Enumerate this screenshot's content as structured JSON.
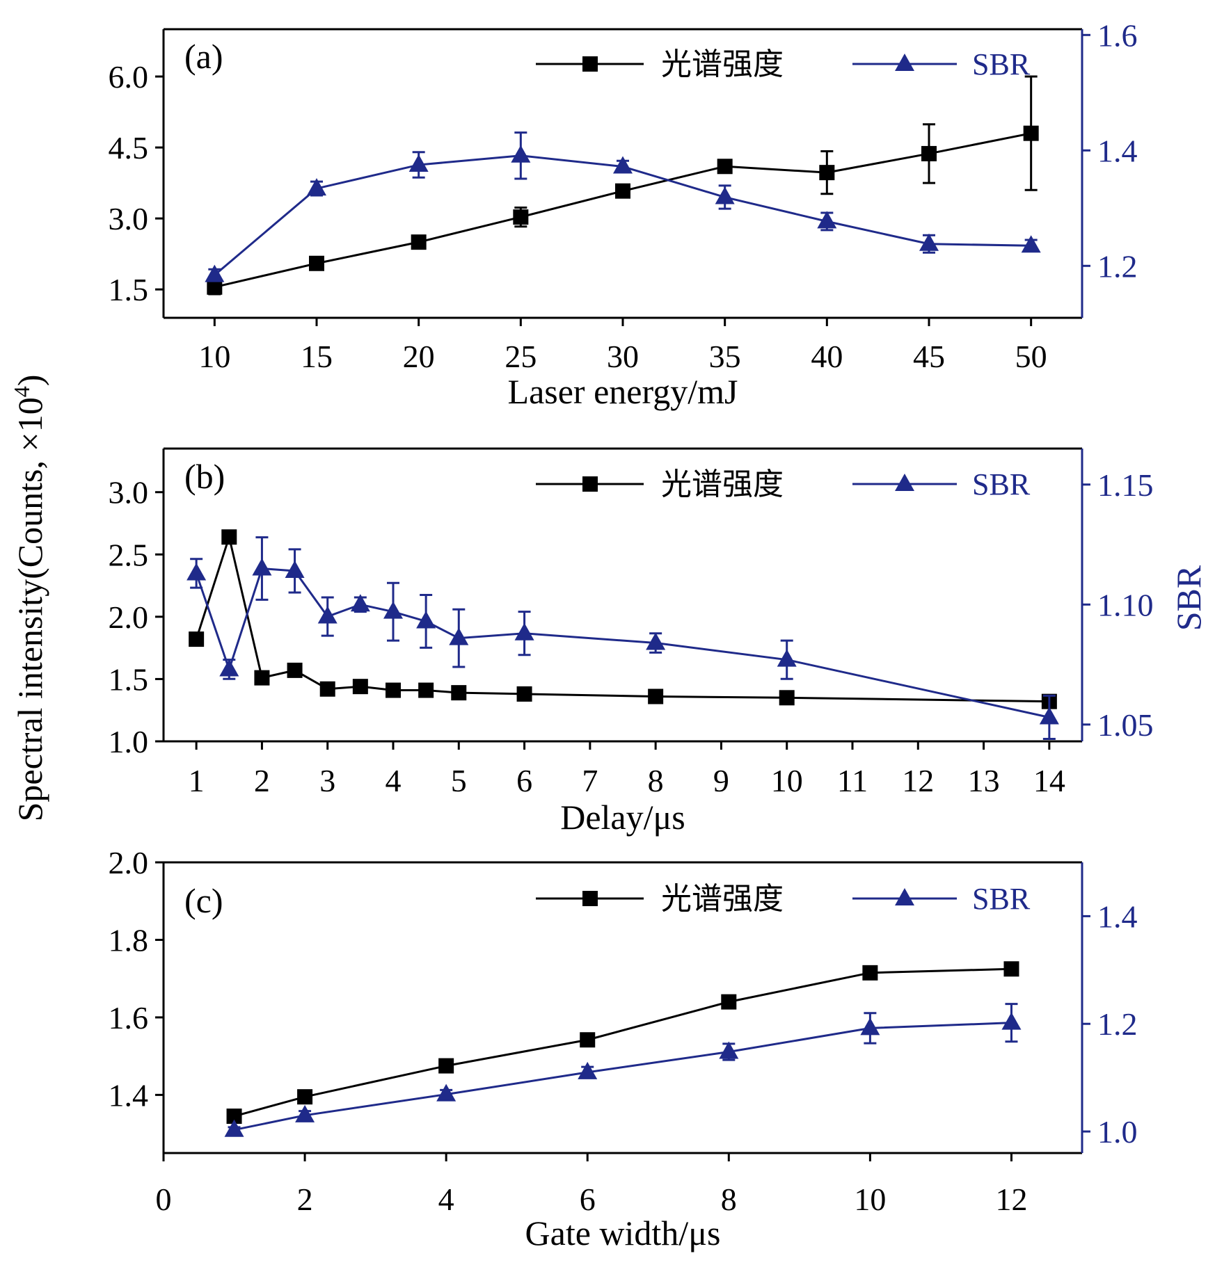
{
  "colors": {
    "intensity": "#000000",
    "sbr": "#1f2a8a",
    "frame": "#000000"
  },
  "labels": {
    "y_left": "Spectral intensity(Counts, ×10",
    "y_left_sup": "4",
    "y_left_close": ")",
    "y_right": "SBR"
  },
  "chart_data": [
    {
      "type": "line",
      "panel_label": "(a)",
      "xlabel": "Laser energy/mJ",
      "ylabel": "Spectral intensity(Counts, ×10^4)",
      "ylabel_right": "SBR",
      "xlim": [
        7.5,
        52.5
      ],
      "x_ticks": [
        10,
        15,
        20,
        25,
        30,
        35,
        40,
        45,
        50
      ],
      "ylim": [
        0.9,
        7.0
      ],
      "y_ticks": [
        1.5,
        3.0,
        4.5,
        6.0
      ],
      "y_tick_labels": [
        "1.5",
        "3.0",
        "4.5",
        "6.0"
      ],
      "ylim_right": [
        1.11,
        1.61
      ],
      "y_ticks_right": [
        1.2,
        1.4,
        1.6
      ],
      "y_tick_labels_right": [
        "1.2",
        "1.4",
        "1.6"
      ],
      "legend": [
        "光谱强度",
        "SBR"
      ],
      "series": [
        {
          "name": "光谱强度",
          "axis": "left",
          "marker": "square",
          "x": [
            10,
            15,
            20,
            25,
            30,
            35,
            40,
            45,
            50
          ],
          "values": [
            1.55,
            2.05,
            2.5,
            3.03,
            3.58,
            4.1,
            3.97,
            4.37,
            4.8
          ],
          "errors": [
            0.15,
            0.1,
            0.12,
            0.2,
            0.12,
            0.1,
            0.45,
            0.62,
            1.2
          ]
        },
        {
          "name": "SBR",
          "axis": "right",
          "marker": "triangle",
          "x": [
            10,
            15,
            20,
            25,
            30,
            35,
            40,
            45,
            50
          ],
          "values": [
            1.184,
            1.334,
            1.375,
            1.391,
            1.372,
            1.319,
            1.277,
            1.238,
            1.235
          ],
          "errors": [
            0.01,
            0.012,
            0.022,
            0.04,
            0.01,
            0.02,
            0.015,
            0.015,
            0.01
          ]
        }
      ]
    },
    {
      "type": "line",
      "panel_label": "(b)",
      "xlabel": "Delay/μs",
      "ylabel": "Spectral intensity(Counts, ×10^4)",
      "ylabel_right": "SBR",
      "xlim": [
        0.5,
        14.5
      ],
      "x_ticks": [
        1,
        2,
        3,
        4,
        5,
        6,
        7,
        8,
        9,
        10,
        11,
        12,
        13,
        14
      ],
      "ylim": [
        1.0,
        3.35
      ],
      "y_ticks": [
        1.0,
        1.5,
        2.0,
        2.5,
        3.0
      ],
      "y_tick_labels": [
        "1.0",
        "1.5",
        "2.0",
        "2.5",
        "3.0"
      ],
      "ylim_right": [
        1.043,
        1.165
      ],
      "y_ticks_right": [
        1.05,
        1.1,
        1.15
      ],
      "y_tick_labels_right": [
        "1.05",
        "1.10",
        "1.15"
      ],
      "legend": [
        "光谱强度",
        "SBR"
      ],
      "series": [
        {
          "name": "光谱强度",
          "axis": "left",
          "marker": "square",
          "x": [
            1,
            1.5,
            2,
            2.5,
            3,
            3.5,
            4,
            4.5,
            5,
            6,
            8,
            10,
            14
          ],
          "values": [
            1.82,
            2.64,
            1.51,
            1.57,
            1.42,
            1.44,
            1.41,
            1.41,
            1.39,
            1.38,
            1.36,
            1.35,
            1.32
          ],
          "errors": [
            0,
            0.03,
            0.03,
            0.03,
            0,
            0.03,
            0.03,
            0.03,
            0.03,
            0.03,
            0.03,
            0.03,
            0.05
          ]
        },
        {
          "name": "SBR",
          "axis": "right",
          "marker": "triangle",
          "x": [
            1,
            1.5,
            2,
            2.5,
            3,
            3.5,
            4,
            4.5,
            5,
            6,
            8,
            10,
            14
          ],
          "values": [
            1.113,
            1.073,
            1.115,
            1.114,
            1.095,
            1.1,
            1.097,
            1.093,
            1.086,
            1.088,
            1.084,
            1.077,
            1.053
          ],
          "errors": [
            0.006,
            0.004,
            0.013,
            0.009,
            0.008,
            0.003,
            0.012,
            0.011,
            0.012,
            0.009,
            0.004,
            0.008,
            0.009
          ]
        }
      ]
    },
    {
      "type": "line",
      "panel_label": "(c)",
      "xlabel": "Gate width/μs",
      "ylabel": "Spectral intensity(Counts, ×10^4)",
      "ylabel_right": "SBR",
      "xlim": [
        0,
        13
      ],
      "x_ticks": [
        0,
        2,
        4,
        6,
        8,
        10,
        12
      ],
      "ylim": [
        1.25,
        2.0
      ],
      "y_ticks": [
        1.4,
        1.6,
        1.8,
        2.0
      ],
      "y_tick_labels": [
        "1.4",
        "1.6",
        "1.8",
        "2.0"
      ],
      "ylim_right": [
        0.96,
        1.5
      ],
      "y_ticks_right": [
        1.0,
        1.2,
        1.4
      ],
      "y_tick_labels_right": [
        "1.0",
        "1.2",
        "1.4"
      ],
      "legend": [
        "光谱强度",
        "SBR"
      ],
      "series": [
        {
          "name": "光谱强度",
          "axis": "left",
          "marker": "square",
          "x": [
            1,
            2,
            4,
            6,
            8,
            10,
            12
          ],
          "values": [
            1.345,
            1.395,
            1.475,
            1.542,
            1.64,
            1.715,
            1.725
          ],
          "errors": [
            0,
            0,
            0,
            0,
            0,
            0,
            0
          ]
        },
        {
          "name": "SBR",
          "axis": "right",
          "marker": "triangle",
          "x": [
            1,
            2,
            4,
            6,
            8,
            10,
            12
          ],
          "values": [
            1.003,
            1.03,
            1.069,
            1.11,
            1.148,
            1.192,
            1.202
          ],
          "errors": [
            0.005,
            0.008,
            0.008,
            0.01,
            0.015,
            0.028,
            0.035
          ]
        }
      ]
    }
  ]
}
